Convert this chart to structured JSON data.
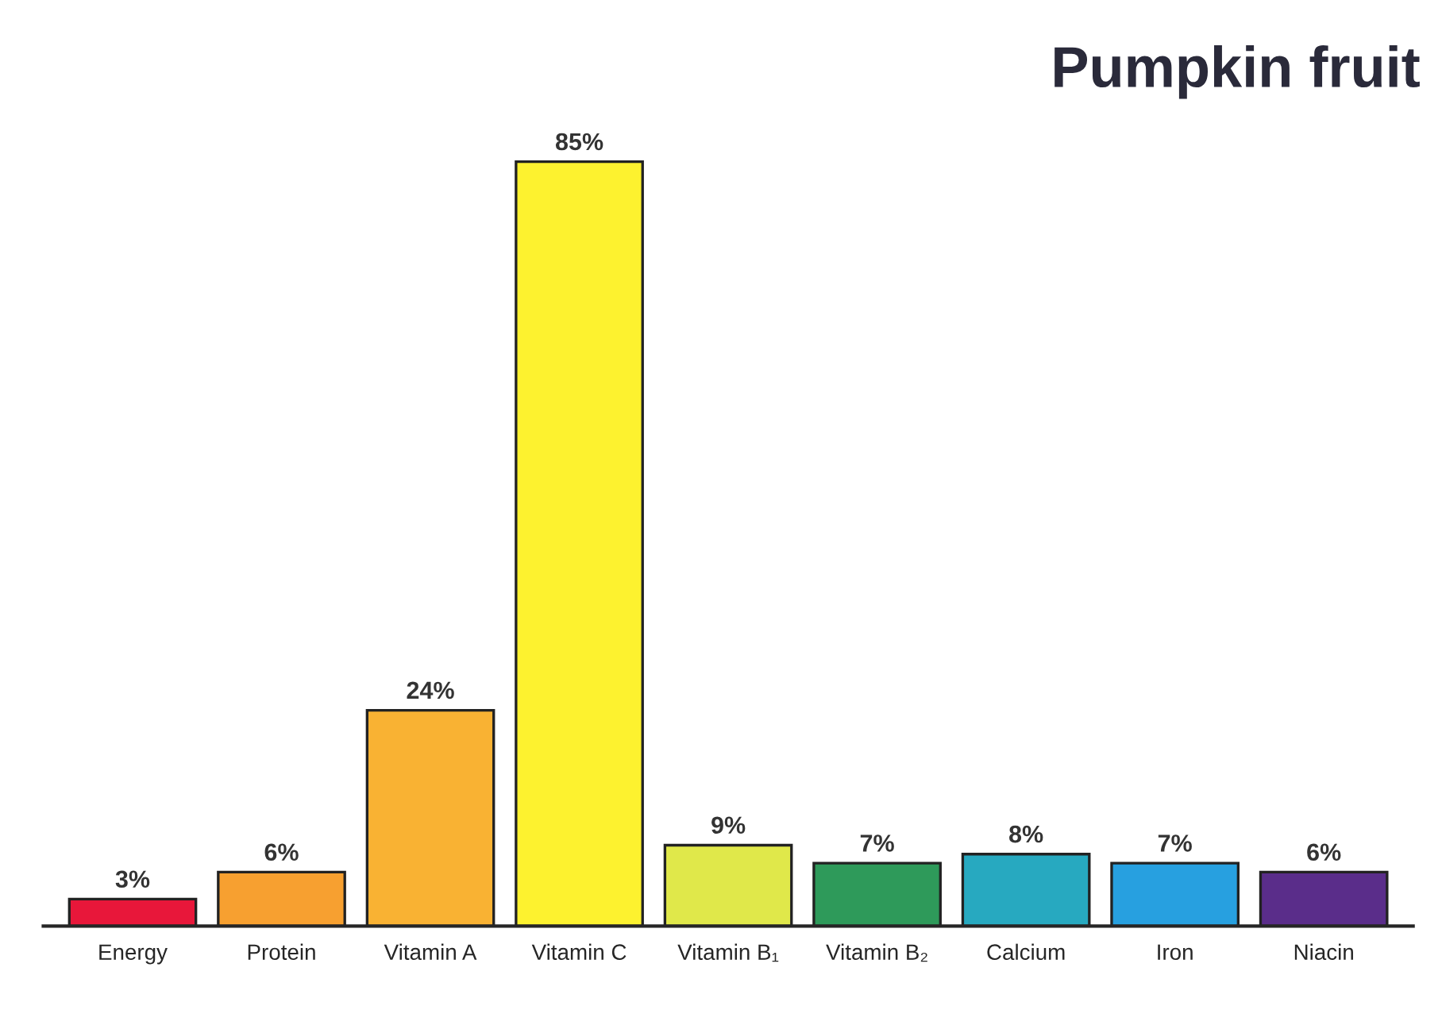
{
  "chart_data": {
    "type": "bar",
    "title": "Pumpkin fruit",
    "categories": [
      "Energy",
      "Protein",
      "Vitamin A",
      "Vitamin C",
      "Vitamin B₁",
      "Vitamin B₂",
      "Calcium",
      "Iron",
      "Niacin"
    ],
    "values": [
      3,
      6,
      24,
      85,
      9,
      7,
      8,
      7,
      6
    ],
    "colors": [
      "#e8173a",
      "#f7a030",
      "#f9b233",
      "#fdf22f",
      "#e0e84a",
      "#2e9a5a",
      "#27a9c0",
      "#27a0e0",
      "#5a2d8a"
    ],
    "value_labels": [
      "3%",
      "6%",
      "24%",
      "85%",
      "9%",
      "7%",
      "8%",
      "7%",
      "6%"
    ],
    "tick_labels": "x",
    "grid": false,
    "legend": false
  }
}
